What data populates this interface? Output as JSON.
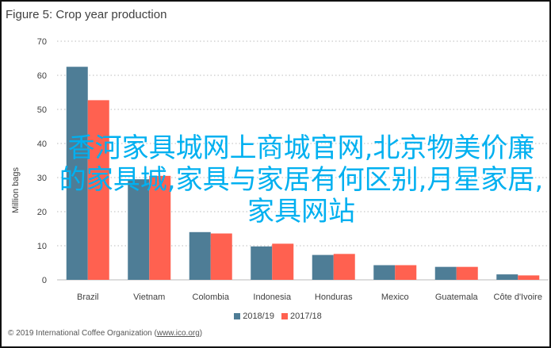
{
  "chart_data": {
    "type": "bar",
    "title": "Figure 5: Crop year production",
    "xlabel": "",
    "ylabel": "Million bags",
    "ylim": [
      0,
      70
    ],
    "yticks": [
      0,
      10,
      20,
      30,
      40,
      50,
      60,
      70
    ],
    "grid": true,
    "legend_position": "bottom",
    "categories": [
      "Brazil",
      "Vietnam",
      "Colombia",
      "Indonesia",
      "Honduras",
      "Mexico",
      "Guatemala",
      "Côte d'Ivoire"
    ],
    "series": [
      {
        "name": "2018/19",
        "color": "#4e7d96",
        "values": [
          62.5,
          29.5,
          14.0,
          9.8,
          7.3,
          4.3,
          3.8,
          1.6
        ]
      },
      {
        "name": "2017/18",
        "color": "#ff6150",
        "values": [
          52.7,
          30.5,
          13.6,
          10.6,
          7.6,
          4.3,
          3.8,
          1.3
        ]
      }
    ]
  },
  "footer": {
    "copyright": "© 2019 International Coffee Organization (",
    "link": "www.ico.org",
    "close": ")"
  },
  "overlay_text": "香河家具城网上商城官网,北京物美价廉的家具城,家具与家居有何区别,月星家居,家具网站"
}
